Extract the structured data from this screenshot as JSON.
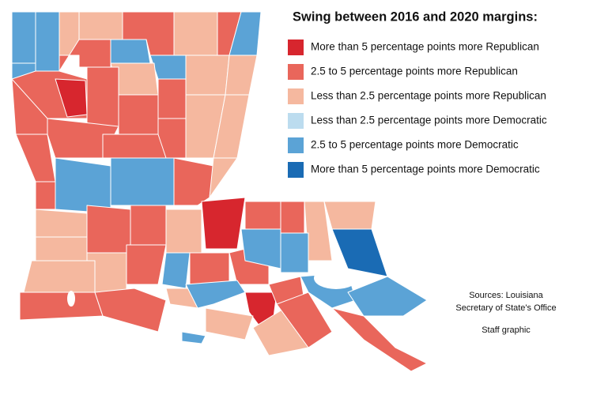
{
  "legend": {
    "title": "Swing between 2016 and 2020 margins:",
    "items": [
      {
        "label": "More than 5 percentage points more Republican",
        "color": "#d7262e"
      },
      {
        "label": "2.5 to 5 percentage points more Republican",
        "color": "#e9665b"
      },
      {
        "label": "Less than 2.5 percentage points more Republican",
        "color": "#f5b89f"
      },
      {
        "label": "Less than 2.5 percentage points more Democratic",
        "color": "#bcdcef"
      },
      {
        "label": "2.5 to 5 percentage points more Democratic",
        "color": "#5ba3d6"
      },
      {
        "label": "More than 5 percentage points more Democratic",
        "color": "#1a6bb4"
      }
    ]
  },
  "credits": {
    "sources": [
      "Sources: Louisiana",
      "Secretary of State's Office"
    ],
    "staff": "Staff graphic"
  }
}
